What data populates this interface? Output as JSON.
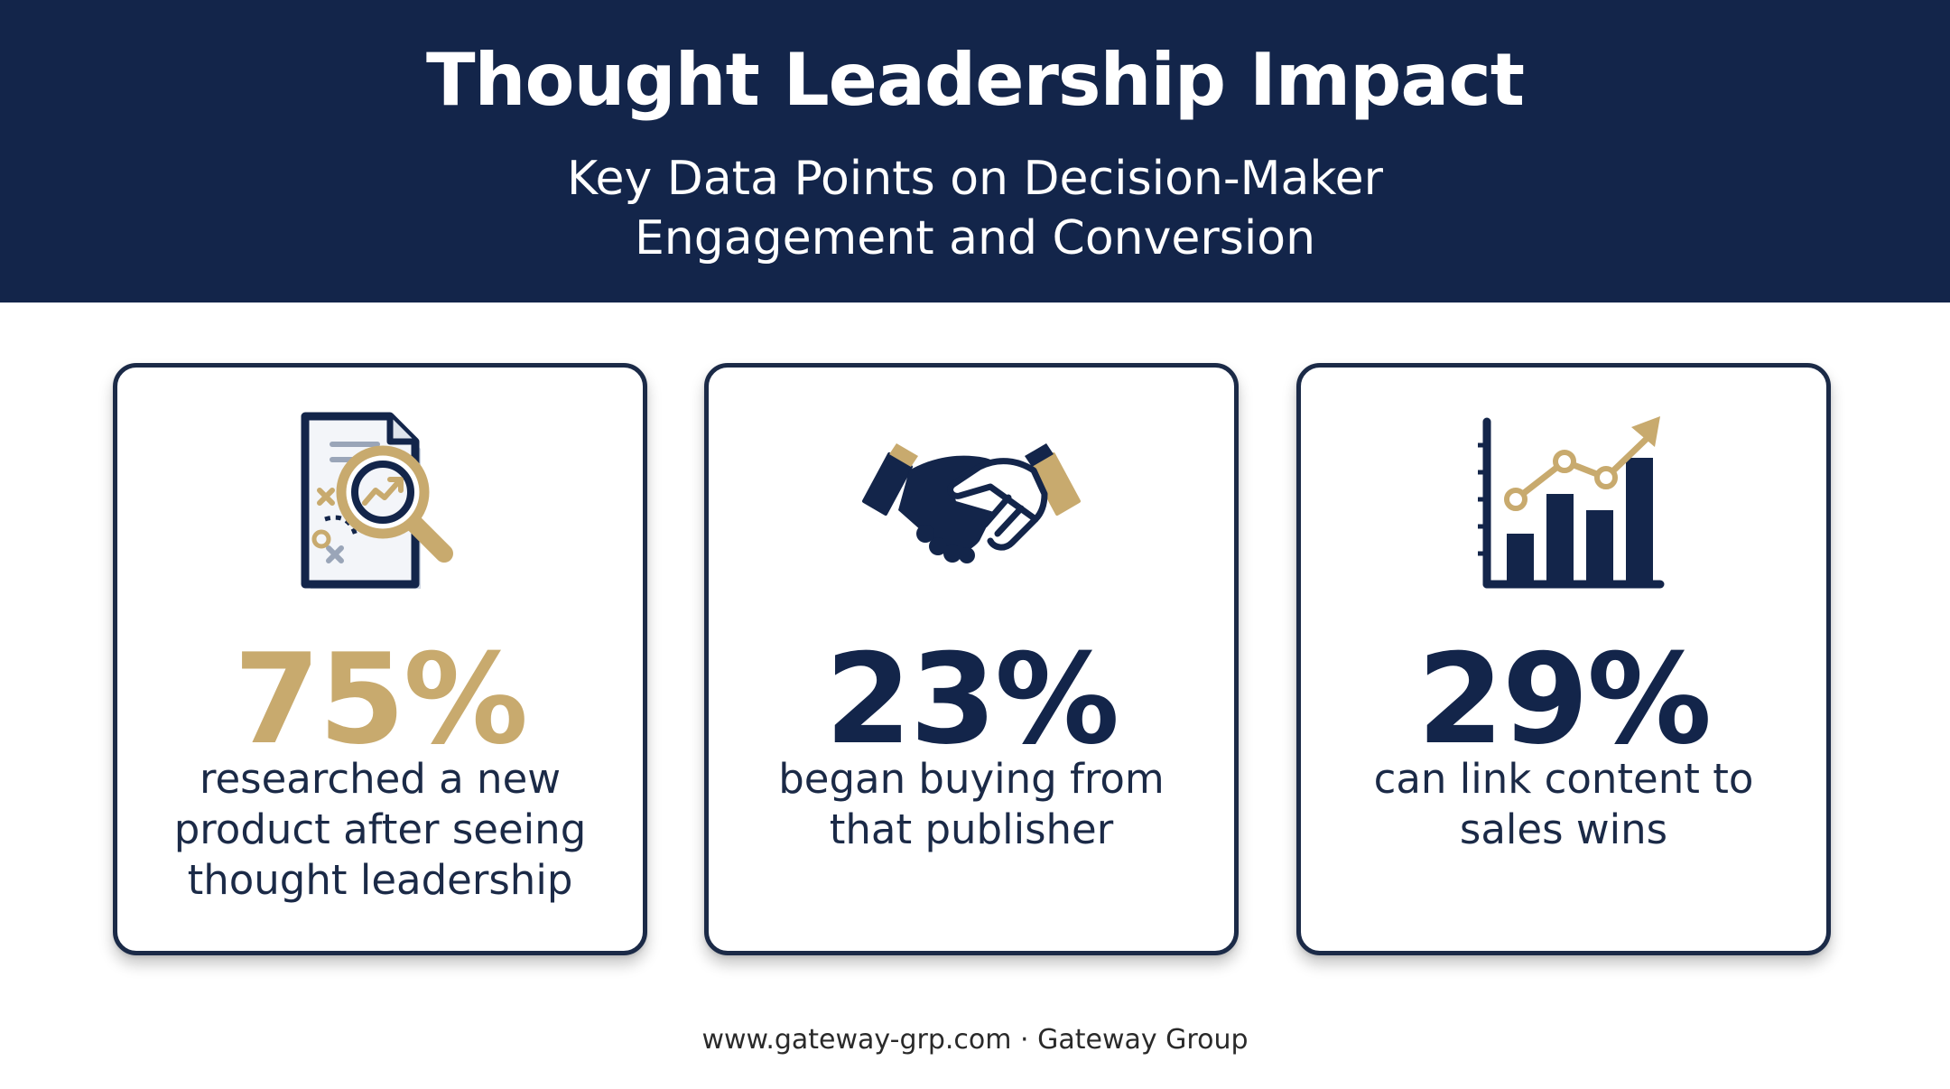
{
  "header": {
    "title": "Thought Leadership Impact",
    "subtitle_line1": "Key Data Points on Decision-Maker",
    "subtitle_line2": "Engagement and Conversion"
  },
  "colors": {
    "navy": "#13254a",
    "gold": "#c8aa6e",
    "dark_text": "#1b2a47"
  },
  "cards": [
    {
      "icon": "document-magnifier-icon",
      "stat": "75%",
      "stat_color": "#c8aa6e",
      "desc_lines": [
        "researched a new",
        "product after seeing",
        "thought leadership"
      ]
    },
    {
      "icon": "handshake-icon",
      "stat": "23%",
      "stat_color": "#13254a",
      "desc_lines": [
        "began buying from",
        "that publisher"
      ]
    },
    {
      "icon": "bar-chart-growth-icon",
      "stat": "29%",
      "stat_color": "#13254a",
      "desc_lines": [
        "can link content to",
        "sales wins"
      ]
    }
  ],
  "footer": {
    "text": "www.gateway-grp.com · Gateway Group"
  }
}
